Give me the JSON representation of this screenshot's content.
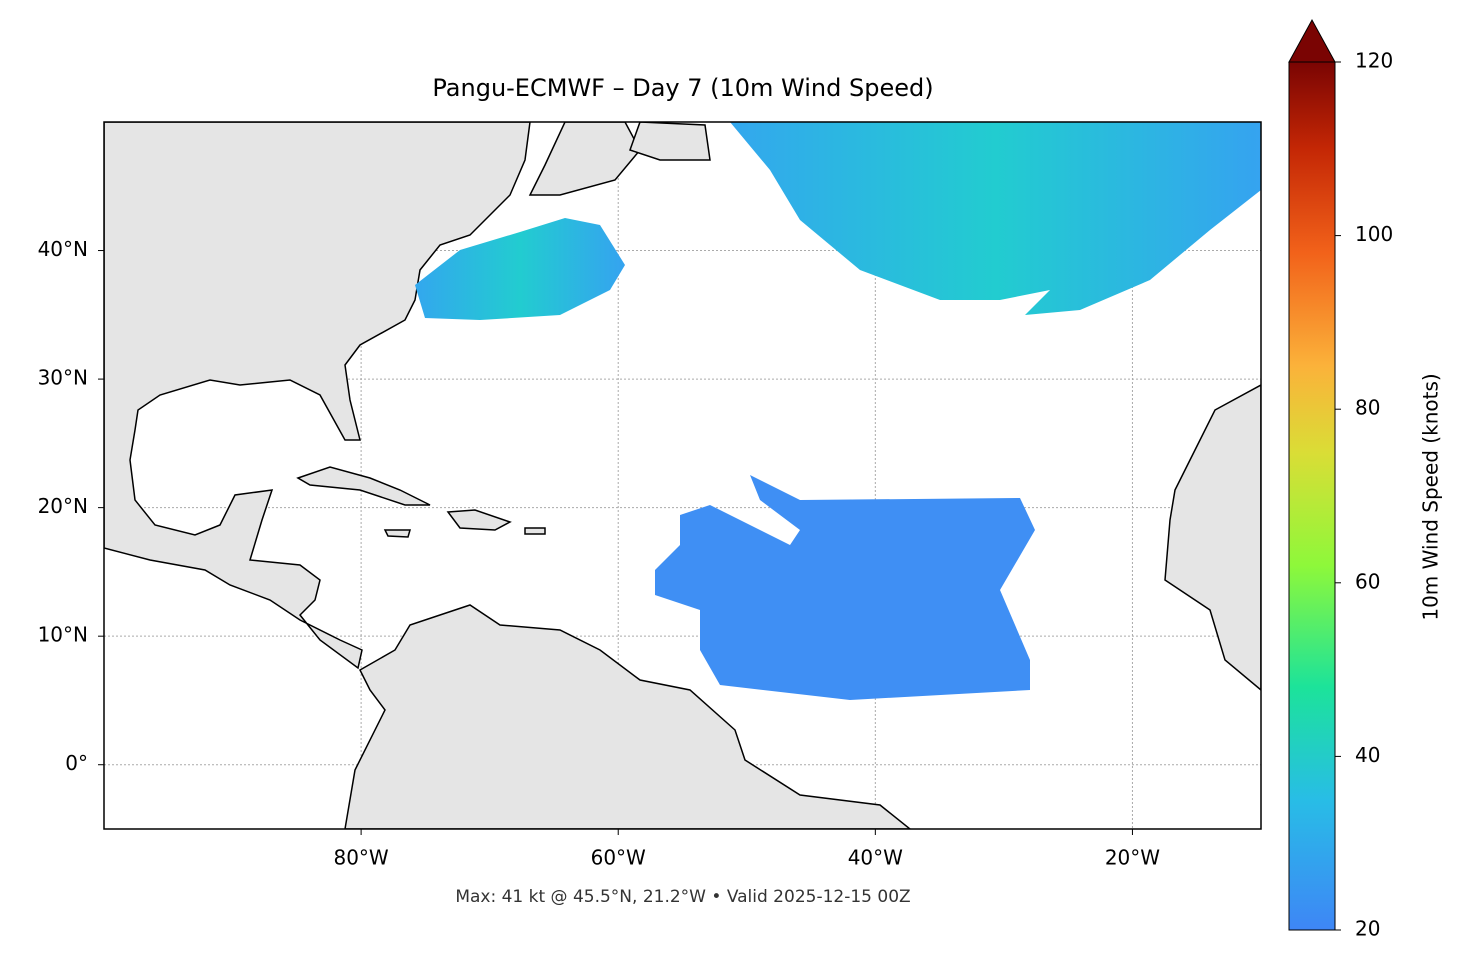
{
  "title": "Pangu-ECMWF – Day 7 (10m Wind Speed)",
  "footnote": "Max: 41 kt @ 45.5°N, 21.2°W • Valid 2025-12-15 00Z",
  "map": {
    "xlim": [
      -100,
      -10
    ],
    "ylim": [
      -5,
      50
    ],
    "xticks": [
      {
        "value": -80,
        "label": "80°W"
      },
      {
        "value": -60,
        "label": "60°W"
      },
      {
        "value": -40,
        "label": "40°W"
      },
      {
        "value": -20,
        "label": "20°W"
      }
    ],
    "yticks": [
      {
        "value": 0,
        "label": "0°"
      },
      {
        "value": 10,
        "label": "10°N"
      },
      {
        "value": 20,
        "label": "20°N"
      },
      {
        "value": 30,
        "label": "30°N"
      },
      {
        "value": 40,
        "label": "40°N"
      }
    ],
    "grid": true
  },
  "colorbar": {
    "label": "10m Wind Speed (knots)",
    "lim": [
      20,
      120
    ],
    "ticks": [
      20,
      40,
      60,
      80,
      100,
      120
    ]
  }
}
